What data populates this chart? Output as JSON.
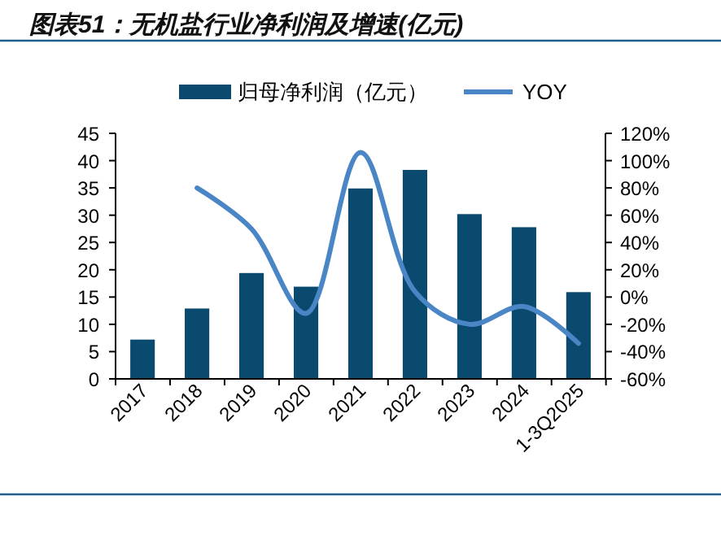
{
  "chart_data": {
    "type": "bar",
    "title": "图表51：无机盐行业净利润及增速(亿元)",
    "categories": [
      "2017",
      "2018",
      "2019",
      "2020",
      "2021",
      "2022",
      "2023",
      "2024",
      "1-3Q2025"
    ],
    "series": [
      {
        "name": "归母净利润（亿元）",
        "color": "#0b4a6f",
        "values": [
          7.2,
          12.9,
          19.4,
          16.9,
          34.9,
          38.3,
          30.2,
          27.8,
          15.9
        ]
      },
      {
        "name": "YOY",
        "type": "line",
        "axis": "y2",
        "color": "#4a86c5",
        "values": [
          null,
          80,
          50,
          -12,
          106,
          4,
          -20,
          -7,
          -34
        ]
      }
    ],
    "ylim": [
      0,
      45
    ],
    "yticks": [
      0,
      5,
      10,
      15,
      20,
      25,
      30,
      35,
      40,
      45
    ],
    "y2lim": [
      -60,
      120
    ],
    "y2ticks": [
      {
        "value": -60,
        "label": "-60%"
      },
      {
        "value": -40,
        "label": "-40%"
      },
      {
        "value": -20,
        "label": "-20%"
      },
      {
        "value": 0,
        "label": "0%"
      },
      {
        "value": 20,
        "label": "20%"
      },
      {
        "value": 40,
        "label": "40%"
      },
      {
        "value": 60,
        "label": "60%"
      },
      {
        "value": 80,
        "label": "80%"
      },
      {
        "value": 100,
        "label": "100%"
      },
      {
        "value": 120,
        "label": "120%"
      }
    ],
    "legend": "top",
    "grid": false,
    "marker": "none",
    "line_style": "solid"
  }
}
